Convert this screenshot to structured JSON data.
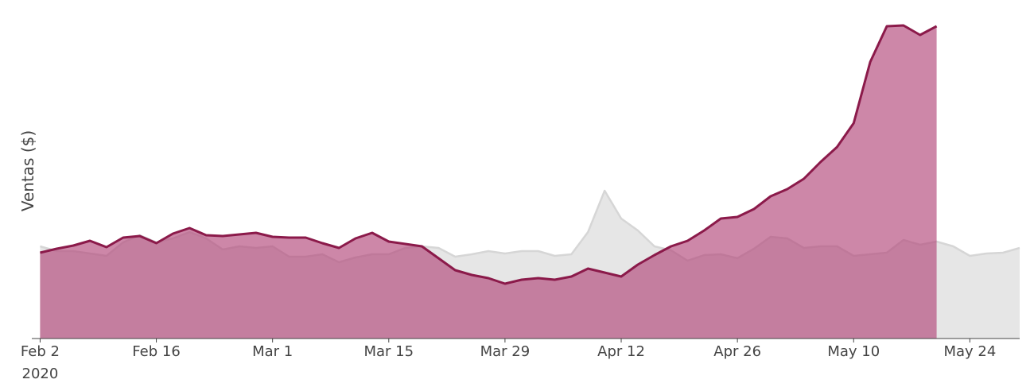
{
  "chart_data": {
    "type": "area",
    "y_label": "Ventas ($)",
    "x": [
      "2020-02-02",
      "2020-02-04",
      "2020-02-06",
      "2020-02-08",
      "2020-02-10",
      "2020-02-12",
      "2020-02-14",
      "2020-02-16",
      "2020-02-18",
      "2020-02-20",
      "2020-02-22",
      "2020-02-24",
      "2020-02-26",
      "2020-02-28",
      "2020-03-01",
      "2020-03-03",
      "2020-03-05",
      "2020-03-07",
      "2020-03-09",
      "2020-03-11",
      "2020-03-13",
      "2020-03-15",
      "2020-03-17",
      "2020-03-19",
      "2020-03-21",
      "2020-03-23",
      "2020-03-25",
      "2020-03-27",
      "2020-03-29",
      "2020-03-31",
      "2020-04-02",
      "2020-04-04",
      "2020-04-06",
      "2020-04-08",
      "2020-04-10",
      "2020-04-12",
      "2020-04-14",
      "2020-04-16",
      "2020-04-18",
      "2020-04-20",
      "2020-04-22",
      "2020-04-24",
      "2020-04-26",
      "2020-04-28",
      "2020-04-30",
      "2020-05-02",
      "2020-05-04",
      "2020-05-06",
      "2020-05-08",
      "2020-05-10",
      "2020-05-12",
      "2020-05-14",
      "2020-05-16",
      "2020-05-18",
      "2020-05-20",
      "2020-05-22",
      "2020-05-24",
      "2020-05-26",
      "2020-05-28",
      "2020-05-30"
    ],
    "series": [
      {
        "color": "#d6d6d6",
        "fill": "#e6e6e6",
        "values": [
          116,
          110,
          110,
          107,
          104,
          121,
          130,
          121,
          126,
          134,
          126,
          112,
          116,
          114,
          116,
          103,
          103,
          106,
          96,
          102,
          106,
          106,
          114,
          116,
          114,
          103,
          106,
          110,
          107,
          110,
          110,
          104,
          106,
          134,
          186,
          151,
          136,
          116,
          111,
          98,
          105,
          106,
          101,
          113,
          128,
          126,
          114,
          116,
          116,
          104,
          106,
          108,
          124,
          118,
          122,
          116,
          104,
          107,
          108,
          114
        ]
      },
      {
        "color": "#8b1a4a",
        "fill": "#b2467a",
        "values": [
          108,
          113,
          117,
          123,
          115,
          127,
          129,
          120,
          132,
          139,
          130,
          129,
          131,
          133,
          128,
          127,
          127,
          120,
          114,
          126,
          133,
          122,
          119,
          116,
          101,
          86,
          80,
          76,
          69,
          74,
          76,
          74,
          78,
          88,
          83,
          78,
          93,
          105,
          116,
          123,
          136,
          151,
          153,
          163,
          179,
          188,
          201,
          222,
          241,
          271,
          348,
          393,
          394,
          382,
          393,
          null,
          null,
          null,
          null,
          null
        ]
      }
    ],
    "xlim": [
      "2020-02-01",
      "2020-05-30"
    ],
    "ylim": [
      0,
      400
    ],
    "xticks": [
      {
        "value": "2020-02-02",
        "label": "Feb 2"
      },
      {
        "value": "2020-02-16",
        "label": "Feb 16"
      },
      {
        "value": "2020-03-01",
        "label": "Mar 1"
      },
      {
        "value": "2020-03-15",
        "label": "Mar 15"
      },
      {
        "value": "2020-03-29",
        "label": "Mar 29"
      },
      {
        "value": "2020-04-12",
        "label": "Apr 12"
      },
      {
        "value": "2020-04-26",
        "label": "Apr 26"
      },
      {
        "value": "2020-05-10",
        "label": "May 10"
      },
      {
        "value": "2020-05-24",
        "label": "May 24"
      }
    ],
    "xtick_year": "2020"
  }
}
